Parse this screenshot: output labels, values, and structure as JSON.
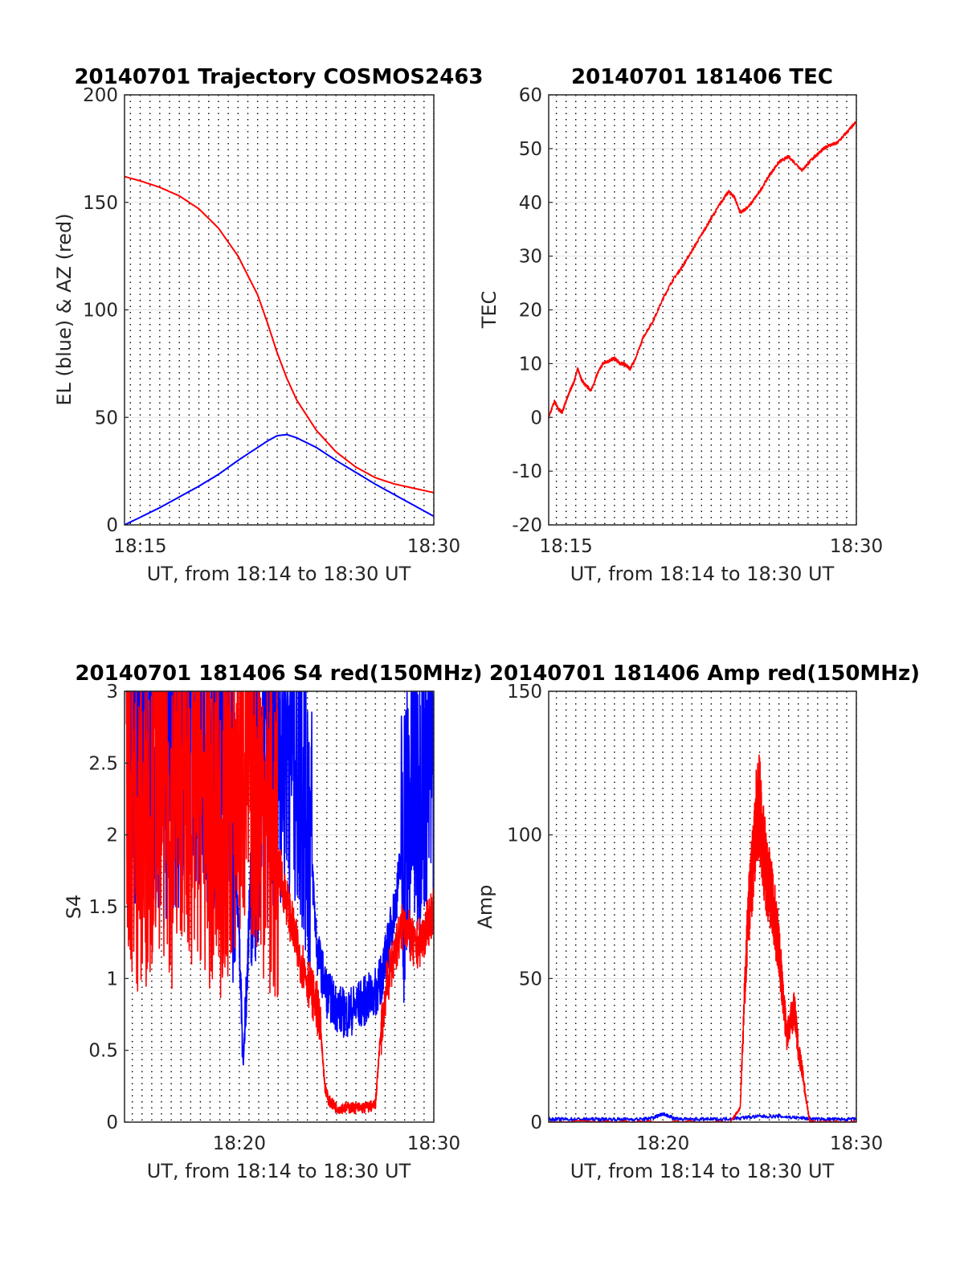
{
  "colors": {
    "el_series": "#0000ff",
    "az_series": "#ff0000",
    "tec_series": "#ff0000",
    "grid_major": "#e0e0e0",
    "grid_minor": "#000000"
  },
  "chart_data": [
    {
      "type": "line",
      "title": "20140701 Trajectory COSMOS2463",
      "xlabel": "UT, from 18:14 to 18:30 UT",
      "ylabel": "EL (blue) & AZ (red)",
      "xlim_minutes": [
        14.2,
        30.0
      ],
      "ylim": [
        0,
        200
      ],
      "xticks": [
        {
          "t": 15,
          "label": "18:15"
        },
        {
          "t": 30,
          "label": "18:30"
        }
      ],
      "yticks": [
        0,
        50,
        100,
        150,
        200
      ],
      "grid": "on",
      "series": [
        {
          "color": "blue",
          "x": [
            14.2,
            15,
            16,
            17,
            18,
            19,
            20,
            21,
            21.5,
            22,
            22.5,
            23,
            24,
            25,
            26,
            27,
            28,
            29,
            30
          ],
          "y": [
            0,
            3.5,
            8,
            13,
            18,
            23.5,
            30,
            36,
            39,
            41.5,
            42,
            40.5,
            36,
            30,
            24.5,
            19,
            14,
            9,
            4
          ]
        },
        {
          "color": "red",
          "x": [
            14.2,
            15,
            16,
            17,
            18,
            19,
            20,
            21,
            21.5,
            22,
            22.5,
            23,
            24,
            25,
            26,
            27,
            28,
            29,
            30
          ],
          "y": [
            162,
            160,
            157,
            153,
            147,
            138,
            125,
            107,
            94,
            80,
            68,
            58,
            44,
            34,
            27,
            22,
            19,
            17,
            15
          ]
        }
      ]
    },
    {
      "type": "line",
      "title": "20140701 181406 TEC",
      "xlabel": "UT, from 18:14 to 18:30 UT",
      "ylabel": "TEC",
      "xlim_minutes": [
        14.1,
        30.0
      ],
      "ylim": [
        -20,
        60
      ],
      "xticks": [
        {
          "t": 15,
          "label": "18:15"
        },
        {
          "t": 30,
          "label": "18:30"
        }
      ],
      "yticks": [
        -20,
        -10,
        0,
        10,
        20,
        30,
        40,
        50,
        60
      ],
      "grid": "on",
      "series": [
        {
          "color": "red",
          "x": [
            14.1,
            14.4,
            14.6,
            14.8,
            15.0,
            15.2,
            15.4,
            15.6,
            15.8,
            16.0,
            16.3,
            16.6,
            16.9,
            17.2,
            17.5,
            17.8,
            18.0,
            18.3,
            18.6,
            19.0,
            19.5,
            20.0,
            20.5,
            21.0,
            21.5,
            22.0,
            22.5,
            23.0,
            23.4,
            23.7,
            24.0,
            24.5,
            25.0,
            25.5,
            26.0,
            26.5,
            27.2,
            27.7,
            28.0,
            28.5,
            29.0,
            29.5,
            30.0
          ],
          "y": [
            0,
            3,
            1.5,
            1,
            3,
            5,
            6.5,
            9,
            7,
            6,
            5,
            8,
            10,
            10.5,
            11,
            10,
            10,
            9,
            11,
            15,
            18,
            22,
            25.5,
            28,
            31,
            34,
            37,
            40,
            42,
            41,
            38,
            39.5,
            42,
            45,
            47.5,
            48.5,
            46,
            48,
            49,
            50.5,
            51,
            53,
            55
          ]
        }
      ]
    },
    {
      "type": "line",
      "title": "20140701 181406 S4 red(150MHz)",
      "xlabel": "UT, from 18:14 to 18:30 UT",
      "ylabel": "S4",
      "xlim_minutes": [
        14.1,
        30.0
      ],
      "ylim": [
        0,
        3
      ],
      "xticks": [
        {
          "t": 20,
          "label": "18:20"
        },
        {
          "t": 30,
          "label": "18:30"
        }
      ],
      "yticks": [
        0,
        0.5,
        1,
        1.5,
        2,
        2.5,
        3
      ],
      "grid": "on",
      "series": [
        {
          "color": "blue",
          "x": [
            14.2,
            14.5,
            15.0,
            15.5,
            16.0,
            16.5,
            17.0,
            17.5,
            18.0,
            18.5,
            19.0,
            19.5,
            20.0,
            20.2,
            20.4,
            20.6,
            20.8,
            21.0,
            21.5,
            22.0,
            22.5,
            23.0,
            23.5,
            24.0,
            24.5,
            25.0,
            25.5,
            26.0,
            26.5,
            27.0,
            27.3,
            27.6,
            28.0,
            28.5,
            29.0,
            29.5,
            30.0
          ],
          "y": [
            2.9,
            2.7,
            2.6,
            2.8,
            2.5,
            2.6,
            2.7,
            2.9,
            2.8,
            2.6,
            2.7,
            2.5,
            1.3,
            0.4,
            1.0,
            1.8,
            2.2,
            2.4,
            2.6,
            2.7,
            2.8,
            2.6,
            2.3,
            1.2,
            0.9,
            0.8,
            0.75,
            0.8,
            0.85,
            0.9,
            1.0,
            1.2,
            1.5,
            2.0,
            2.4,
            2.6,
            2.5
          ]
        },
        {
          "color": "red",
          "x": [
            14.2,
            14.5,
            15.0,
            15.5,
            16.0,
            16.5,
            17.0,
            17.5,
            18.0,
            18.5,
            19.0,
            19.5,
            20.0,
            20.5,
            21.0,
            21.5,
            22.0,
            22.5,
            23.0,
            23.5,
            24.0,
            24.2,
            24.4,
            24.6,
            25.0,
            25.5,
            26.0,
            26.5,
            27.0,
            27.2,
            27.5,
            28.0,
            28.5,
            29.0,
            29.5,
            30.0
          ],
          "y": [
            2.5,
            2.2,
            2.0,
            2.3,
            2.4,
            2.1,
            2.5,
            2.2,
            2.3,
            2.1,
            2.0,
            2.2,
            2.4,
            2.5,
            2.3,
            2.1,
            1.8,
            1.5,
            1.2,
            1.0,
            0.8,
            0.6,
            0.25,
            0.15,
            0.1,
            0.1,
            0.1,
            0.1,
            0.12,
            0.5,
            0.9,
            1.2,
            1.4,
            1.2,
            1.3,
            1.5
          ]
        }
      ]
    },
    {
      "type": "line",
      "title": "20140701 181406 Amp red(150MHz)",
      "xlabel": "UT, from 18:14 to 18:30 UT",
      "ylabel": "Amp",
      "xlim_minutes": [
        14.1,
        30.0
      ],
      "ylim": [
        0,
        150
      ],
      "xticks": [
        {
          "t": 20,
          "label": "18:20"
        },
        {
          "t": 30,
          "label": "18:30"
        }
      ],
      "yticks": [
        0,
        50,
        100,
        150
      ],
      "grid": "on",
      "series": [
        {
          "color": "blue",
          "x": [
            14.1,
            15,
            16,
            17,
            18,
            19,
            19.5,
            20.0,
            20.5,
            21.0,
            22.0,
            23.0,
            24.0,
            25.0,
            26.0,
            27.0,
            28.0,
            29.0,
            30.0
          ],
          "y": [
            1,
            1,
            1,
            1,
            1,
            1,
            1.5,
            3,
            1.5,
            1,
            1,
            1,
            1.5,
            2,
            2,
            1.5,
            1,
            1,
            1
          ]
        },
        {
          "color": "red",
          "x": [
            14.1,
            23.5,
            24.0,
            24.2,
            24.4,
            24.6,
            24.8,
            25.0,
            25.2,
            25.4,
            25.6,
            25.8,
            26.0,
            26.2,
            26.4,
            26.6,
            26.8,
            27.0,
            27.2,
            27.4,
            27.6,
            27.8,
            30.0
          ],
          "y": [
            0,
            0,
            5,
            40,
            70,
            85,
            105,
            110,
            95,
            85,
            80,
            70,
            60,
            45,
            30,
            35,
            40,
            25,
            18,
            8,
            0,
            0,
            0
          ]
        }
      ]
    }
  ]
}
